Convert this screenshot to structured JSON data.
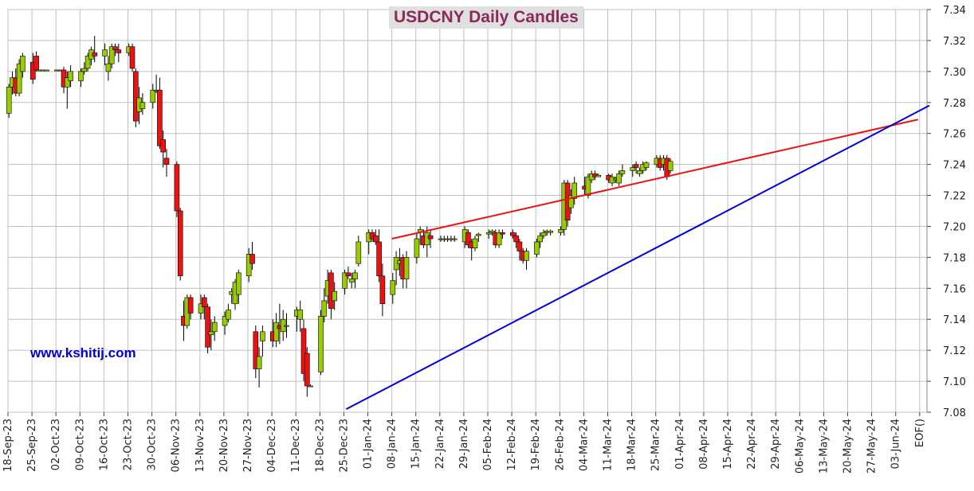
{
  "chart_data": {
    "type": "candlestick",
    "title": "USDCNY Daily Candles",
    "watermark": "www.kshitij.com",
    "ylim": [
      7.08,
      7.34
    ],
    "y_ticks": [
      "7.08",
      "7.10",
      "7.12",
      "7.14",
      "7.16",
      "7.18",
      "7.20",
      "7.22",
      "7.24",
      "7.26",
      "7.28",
      "7.30",
      "7.32",
      "7.34"
    ],
    "x_ticks": [
      "18-Sep-23",
      "25-Sep-23",
      "02-Oct-23",
      "09-Oct-23",
      "16-Oct-23",
      "23-Oct-23",
      "30-Oct-23",
      "06-Nov-23",
      "13-Nov-23",
      "20-Nov-23",
      "27-Nov-23",
      "04-Dec-23",
      "11-Dec-23",
      "18-Dec-23",
      "25-Dec-23",
      "01-Jan-24",
      "08-Jan-24",
      "15-Jan-24",
      "22-Jan-24",
      "29-Jan-24",
      "05-Feb-24",
      "12-Feb-24",
      "19-Feb-24",
      "26-Feb-24",
      "04-Mar-24",
      "11-Mar-24",
      "18-Mar-24",
      "25-Mar-24",
      "01-Apr-24",
      "08-Apr-24",
      "15-Apr-24",
      "22-Apr-24",
      "29-Apr-24",
      "06-May-24",
      "13-May-24",
      "20-May-24",
      "27-May-24",
      "03-Jun-24",
      "EOF()"
    ],
    "colors": {
      "up": "#99cc00",
      "down": "#ee1111",
      "resistance": "#ee1111",
      "support": "#0000dd",
      "grid": "#c0c0c0"
    },
    "candles": [
      [
        7.273,
        7.292,
        7.27,
        7.29
      ],
      [
        7.29,
        7.3,
        7.285,
        7.296
      ],
      [
        7.296,
        7.302,
        7.284,
        7.286
      ],
      [
        7.286,
        7.308,
        7.284,
        7.305
      ],
      [
        7.3,
        7.312,
        7.296,
        7.31
      ],
      [
        7.306,
        7.312,
        7.292,
        7.295
      ],
      [
        7.31,
        7.313,
        7.3,
        7.301
      ],
      [
        7.301,
        7.301,
        7.301,
        7.301
      ],
      [
        7.301,
        7.301,
        7.301,
        7.301
      ],
      [
        7.301,
        7.301,
        7.301,
        7.301
      ],
      [
        7.301,
        7.301,
        7.301,
        7.301
      ],
      [
        7.301,
        7.301,
        7.301,
        7.301
      ],
      [
        7.301,
        7.303,
        7.286,
        7.29
      ],
      [
        7.29,
        7.3,
        7.276,
        7.296
      ],
      [
        7.294,
        7.304,
        7.29,
        7.3
      ],
      [
        7.294,
        7.302,
        7.29,
        7.3
      ],
      [
        7.3,
        7.306,
        7.298,
        7.302
      ],
      [
        7.302,
        7.312,
        7.3,
        7.31
      ],
      [
        7.308,
        7.316,
        7.304,
        7.314
      ],
      [
        7.312,
        7.323,
        7.306,
        7.31
      ],
      [
        7.31,
        7.318,
        7.304,
        7.314
      ],
      [
        7.3,
        7.31,
        7.294,
        7.305
      ],
      [
        7.305,
        7.318,
        7.302,
        7.316
      ],
      [
        7.316,
        7.318,
        7.31,
        7.314
      ],
      [
        7.314,
        7.318,
        7.306,
        7.312
      ],
      [
        7.312,
        7.318,
        7.31,
        7.316
      ],
      [
        7.316,
        7.318,
        7.3,
        7.302
      ],
      [
        7.3,
        7.302,
        7.264,
        7.268
      ],
      [
        7.274,
        7.29,
        7.266,
        7.283
      ],
      [
        7.276,
        7.286,
        7.272,
        7.28
      ],
      [
        7.28,
        7.292,
        7.276,
        7.288
      ],
      [
        7.288,
        7.298,
        7.286,
        7.288
      ],
      [
        7.288,
        7.296,
        7.25,
        7.252
      ],
      [
        7.256,
        7.262,
        7.238,
        7.248
      ],
      [
        7.244,
        7.25,
        7.232,
        7.24
      ],
      [
        7.24,
        7.242,
        7.206,
        7.21
      ],
      [
        7.21,
        7.212,
        7.165,
        7.168
      ],
      [
        7.142,
        7.152,
        7.126,
        7.136
      ],
      [
        7.136,
        7.156,
        7.134,
        7.154
      ],
      [
        7.154,
        7.156,
        7.14,
        7.144
      ],
      [
        7.144,
        7.156,
        7.14,
        7.15
      ],
      [
        7.154,
        7.156,
        7.14,
        7.148
      ],
      [
        7.148,
        7.15,
        7.118,
        7.122
      ],
      [
        7.13,
        7.14,
        7.12,
        7.132
      ],
      [
        7.132,
        7.142,
        7.126,
        7.138
      ],
      [
        7.136,
        7.145,
        7.13,
        7.142
      ],
      [
        7.14,
        7.15,
        7.138,
        7.146
      ],
      [
        7.156,
        7.16,
        7.15,
        7.158
      ],
      [
        7.15,
        7.166,
        7.146,
        7.164
      ],
      [
        7.156,
        7.172,
        7.15,
        7.17
      ],
      [
        7.168,
        7.186,
        7.164,
        7.182
      ],
      [
        7.182,
        7.19,
        7.172,
        7.176
      ],
      [
        7.132,
        7.136,
        7.102,
        7.108
      ],
      [
        7.108,
        7.122,
        7.096,
        7.116
      ],
      [
        7.126,
        7.136,
        7.116,
        7.132
      ],
      [
        7.132,
        7.14,
        7.122,
        7.126
      ],
      [
        7.126,
        7.144,
        7.122,
        7.138
      ],
      [
        7.136,
        7.15,
        7.124,
        7.134
      ],
      [
        7.132,
        7.146,
        7.126,
        7.14
      ],
      [
        7.136,
        7.144,
        7.128,
        7.136
      ],
      [
        7.142,
        7.148,
        7.132,
        7.146
      ],
      [
        7.14,
        7.152,
        7.132,
        7.146
      ],
      [
        7.134,
        7.14,
        7.1,
        7.105
      ],
      [
        7.118,
        7.122,
        7.09,
        7.097
      ],
      [
        7.097,
        7.098,
        7.097,
        7.097
      ],
      [
        7.106,
        7.146,
        7.104,
        7.142
      ],
      [
        7.142,
        7.16,
        7.138,
        7.152
      ],
      [
        7.155,
        7.172,
        7.15,
        7.165
      ],
      [
        7.17,
        7.172,
        7.14,
        7.147
      ],
      [
        7.152,
        7.164,
        7.146,
        7.158
      ],
      [
        7.16,
        7.172,
        7.156,
        7.17
      ],
      [
        7.17,
        7.174,
        7.166,
        7.168
      ],
      [
        7.164,
        7.17,
        7.16,
        7.166
      ],
      [
        7.166,
        7.172,
        7.16,
        7.17
      ],
      [
        7.176,
        7.194,
        7.174,
        7.19
      ],
      [
        7.19,
        7.198,
        7.182,
        7.196
      ],
      [
        7.196,
        7.198,
        7.19,
        7.192
      ],
      [
        7.194,
        7.198,
        7.188,
        7.19
      ],
      [
        7.19,
        7.198,
        7.164,
        7.168
      ],
      [
        7.168,
        7.176,
        7.142,
        7.15
      ],
      [
        7.156,
        7.17,
        7.15,
        7.165
      ],
      [
        7.172,
        7.184,
        7.162,
        7.18
      ],
      [
        7.176,
        7.186,
        7.168,
        7.178
      ],
      [
        7.18,
        7.182,
        7.16,
        7.166
      ],
      [
        7.166,
        7.184,
        7.16,
        7.18
      ],
      [
        7.18,
        7.196,
        7.176,
        7.192
      ],
      [
        7.196,
        7.2,
        7.188,
        7.198
      ],
      [
        7.194,
        7.198,
        7.186,
        7.188
      ],
      [
        7.188,
        7.2,
        7.18,
        7.196
      ],
      [
        7.194,
        7.198,
        7.186,
        7.192
      ],
      [
        7.192,
        7.194,
        7.19,
        7.192
      ],
      [
        7.192,
        7.194,
        7.19,
        7.192
      ],
      [
        7.192,
        7.194,
        7.19,
        7.192
      ],
      [
        7.192,
        7.194,
        7.19,
        7.192
      ],
      [
        7.192,
        7.194,
        7.19,
        7.192
      ],
      [
        7.19,
        7.2,
        7.186,
        7.198
      ],
      [
        7.196,
        7.198,
        7.186,
        7.188
      ],
      [
        7.19,
        7.192,
        7.178,
        7.186
      ],
      [
        7.186,
        7.194,
        7.184,
        7.192
      ],
      [
        7.194,
        7.196,
        7.19,
        7.195
      ],
      [
        7.195,
        7.198,
        7.192,
        7.196
      ],
      [
        7.196,
        7.198,
        7.194,
        7.197
      ],
      [
        7.196,
        7.198,
        7.186,
        7.188
      ],
      [
        7.188,
        7.198,
        7.186,
        7.196
      ],
      [
        7.196,
        7.198,
        7.192,
        7.195
      ],
      [
        7.196,
        7.198,
        7.192,
        7.194
      ],
      [
        7.194,
        7.196,
        7.186,
        7.19
      ],
      [
        7.19,
        7.192,
        7.178,
        7.184
      ],
      [
        7.184,
        7.186,
        7.176,
        7.178
      ],
      [
        7.178,
        7.186,
        7.172,
        7.184
      ],
      [
        7.182,
        7.192,
        7.18,
        7.19
      ],
      [
        7.19,
        7.196,
        7.186,
        7.194
      ],
      [
        7.194,
        7.198,
        7.192,
        7.196
      ],
      [
        7.196,
        7.198,
        7.194,
        7.197
      ],
      [
        7.196,
        7.198,
        7.194,
        7.197
      ],
      [
        7.196,
        7.2,
        7.194,
        7.198
      ],
      [
        7.198,
        7.23,
        7.194,
        7.228
      ],
      [
        7.228,
        7.23,
        7.2,
        7.204
      ],
      [
        7.212,
        7.224,
        7.208,
        7.22
      ],
      [
        7.218,
        7.232,
        7.214,
        7.228
      ],
      [
        7.226,
        7.232,
        7.22,
        7.224
      ],
      [
        7.22,
        7.234,
        7.218,
        7.232
      ],
      [
        7.23,
        7.236,
        7.228,
        7.234
      ],
      [
        7.234,
        7.236,
        7.23,
        7.232
      ],
      [
        7.232,
        7.234,
        7.232,
        7.233
      ],
      [
        7.233,
        7.234,
        7.228,
        7.23
      ],
      [
        7.228,
        7.234,
        7.226,
        7.232
      ],
      [
        7.23,
        7.232,
        7.228,
        7.231
      ],
      [
        7.228,
        7.236,
        7.226,
        7.234
      ],
      [
        7.234,
        7.24,
        7.232,
        7.236
      ],
      [
        7.236,
        7.24,
        7.232,
        7.238
      ],
      [
        7.24,
        7.242,
        7.234,
        7.238
      ],
      [
        7.234,
        7.238,
        7.232,
        7.236
      ],
      [
        7.236,
        7.242,
        7.234,
        7.24
      ],
      [
        7.238,
        7.242,
        7.236,
        7.241
      ],
      [
        7.24,
        7.246,
        7.238,
        7.244
      ],
      [
        7.244,
        7.246,
        7.236,
        7.238
      ],
      [
        7.24,
        7.246,
        7.236,
        7.244
      ],
      [
        7.244,
        7.246,
        7.23,
        7.232
      ],
      [
        7.236,
        7.244,
        7.234,
        7.242
      ]
    ],
    "trendlines": [
      {
        "name": "resistance",
        "from": [
          "08-Jan-24",
          7.192
        ],
        "to": [
          "EOF()",
          7.269
        ]
      },
      {
        "name": "support",
        "from": [
          "25-Dec-23",
          7.082
        ],
        "to": [
          "EOF()",
          7.278
        ]
      }
    ]
  }
}
